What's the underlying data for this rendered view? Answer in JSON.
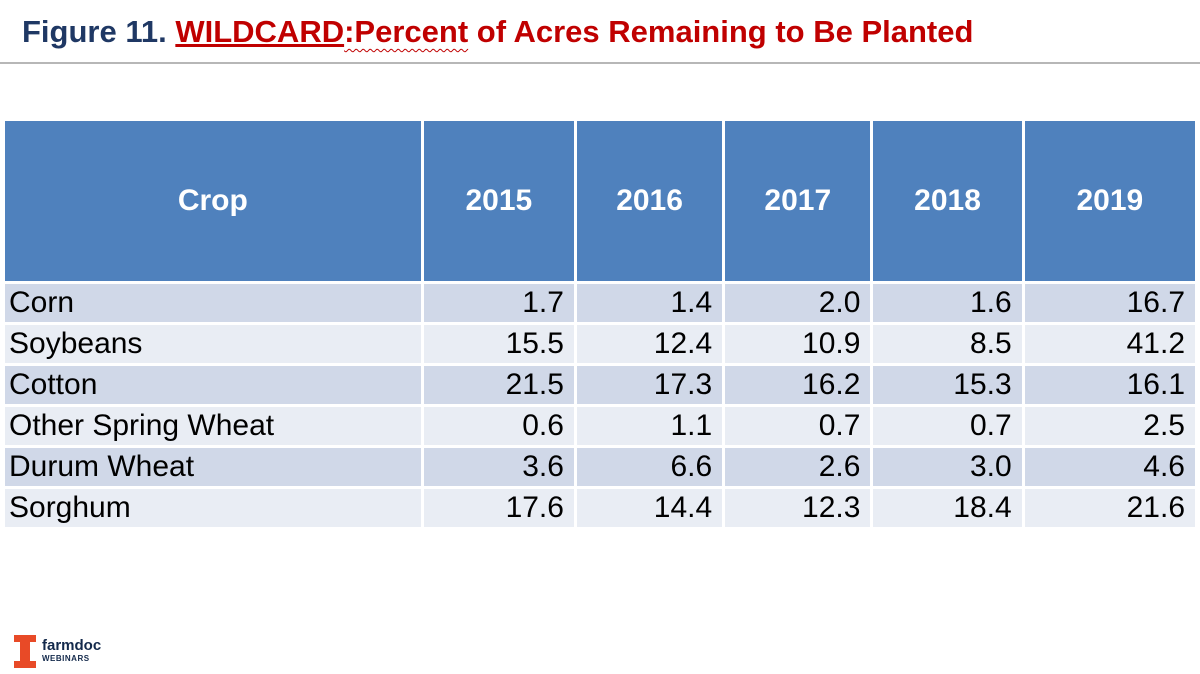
{
  "title": {
    "prefix": "Figure 11. ",
    "highlight": "WILDCARD",
    "wavy": ":Percent",
    "rest": " of Acres Remaining to Be Planted"
  },
  "table": {
    "headers": [
      "Crop",
      "2015",
      "2016",
      "2017",
      "2018",
      "2019"
    ],
    "rows": [
      [
        "Corn",
        "1.7",
        "1.4",
        "2.0",
        "1.6",
        "16.7"
      ],
      [
        "Soybeans",
        "15.5",
        "12.4",
        "10.9",
        "8.5",
        "41.2"
      ],
      [
        "Cotton",
        "21.5",
        "17.3",
        "16.2",
        "15.3",
        "16.1"
      ],
      [
        "Other Spring Wheat",
        "0.6",
        "1.1",
        "0.7",
        "0.7",
        "2.5"
      ],
      [
        "Durum Wheat",
        "3.6",
        "6.6",
        "2.6",
        "3.0",
        "4.6"
      ],
      [
        "Sorghum",
        "17.6",
        "14.4",
        "12.3",
        "18.4",
        "21.6"
      ]
    ]
  },
  "logo": {
    "name": "farmdoc",
    "sub": "WEBINARS"
  },
  "colors": {
    "title_blue": "#1f3864",
    "title_red": "#c00000",
    "header_bg": "#4f81bd",
    "row_dark": "#d0d8e8",
    "row_light": "#e9edf4",
    "logo_orange": "#e84a27"
  }
}
